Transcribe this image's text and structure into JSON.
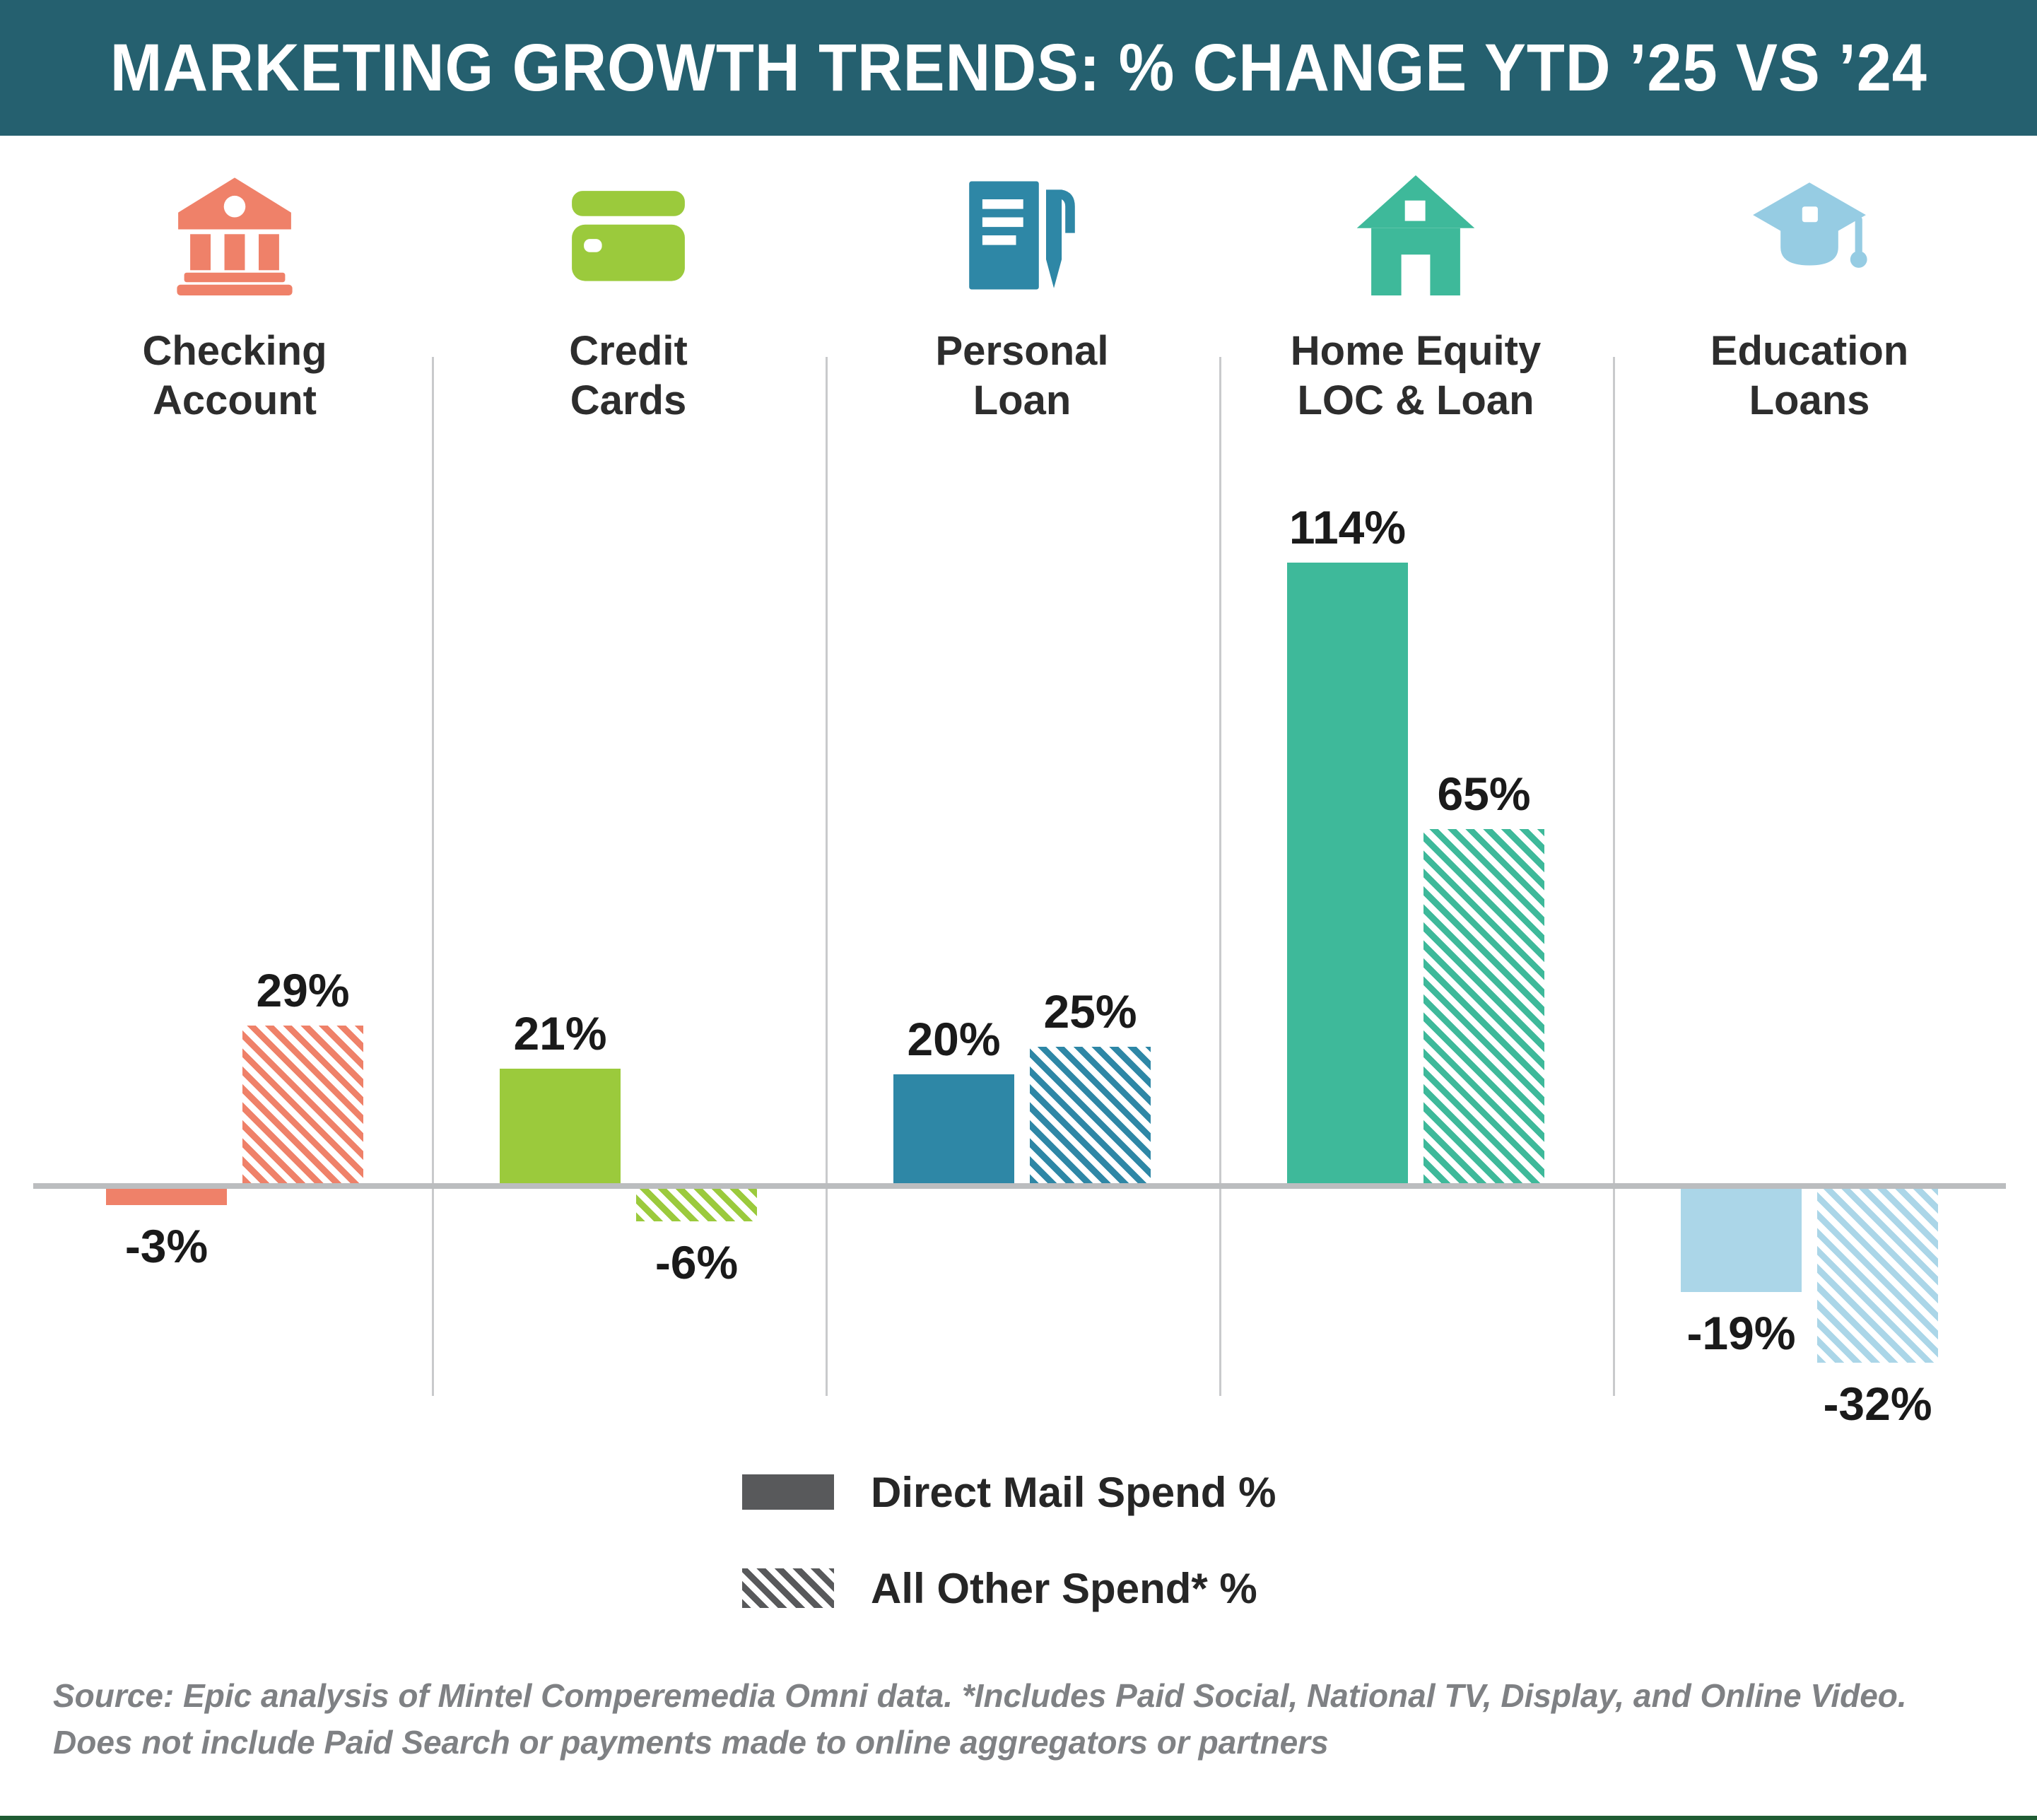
{
  "title": "MARKETING GROWTH TRENDS: % CHANGE YTD ’25 VS ’24",
  "chart_data": {
    "type": "bar",
    "categories": [
      "Checking Account",
      "Credit Cards",
      "Personal Loan",
      "Home Equity LOC & Loan",
      "Education Loans"
    ],
    "category_label_lines": [
      [
        "Checking",
        "Account"
      ],
      [
        "Credit",
        "Cards"
      ],
      [
        "Personal",
        "Loan"
      ],
      [
        "Home Equity",
        "LOC & Loan"
      ],
      [
        "Education",
        "Loans"
      ]
    ],
    "category_colors": [
      "#EF8169",
      "#9BCA3C",
      "#2E87A6",
      "#3EB99A",
      "#ABD6E8"
    ],
    "icon_colors": [
      "#EF8169",
      "#9BCA3C",
      "#2E87A6",
      "#3EB99A",
      "#96CCE3"
    ],
    "icons": [
      "bank",
      "credit-card",
      "document-pen",
      "house",
      "graduation-cap"
    ],
    "series": [
      {
        "name": "Direct Mail Spend %",
        "pattern": "solid",
        "values": [
          -3,
          21,
          20,
          114,
          -19
        ],
        "labels": [
          "-3%",
          "21%",
          "20%",
          "114%",
          "-19%"
        ]
      },
      {
        "name": "All Other Spend* %",
        "pattern": "hatched",
        "values": [
          29,
          -6,
          25,
          65,
          -32
        ],
        "labels": [
          "29%",
          "-6%",
          "25%",
          "65%",
          "-32%"
        ]
      }
    ],
    "ylim": [
      -32,
      114
    ],
    "grid": false,
    "baseline": 0,
    "legend_position": "bottom-center"
  },
  "legend": {
    "items": [
      {
        "label": "Direct Mail Spend %",
        "pattern": "solid"
      },
      {
        "label": "All Other Spend* %",
        "pattern": "hatched"
      }
    ]
  },
  "source": {
    "line1": "Source: Epic analysis of Mintel Comperemedia Omni data. *Includes Paid Social, National TV, Display, and Online Video.",
    "line2": "Does not include Paid Search or payments made to online aggregators or partners"
  },
  "colors": {
    "banner": "#25606F",
    "axis": "#BBBDBF",
    "divider": "#C9CACC",
    "legend_swatch": "#58595B",
    "value_label": "#1A1A1A",
    "category_label": "#2D2D2D",
    "source_text": "#7F8184",
    "bottom_border": "#1F5C33",
    "background": "#FFFFFF"
  }
}
